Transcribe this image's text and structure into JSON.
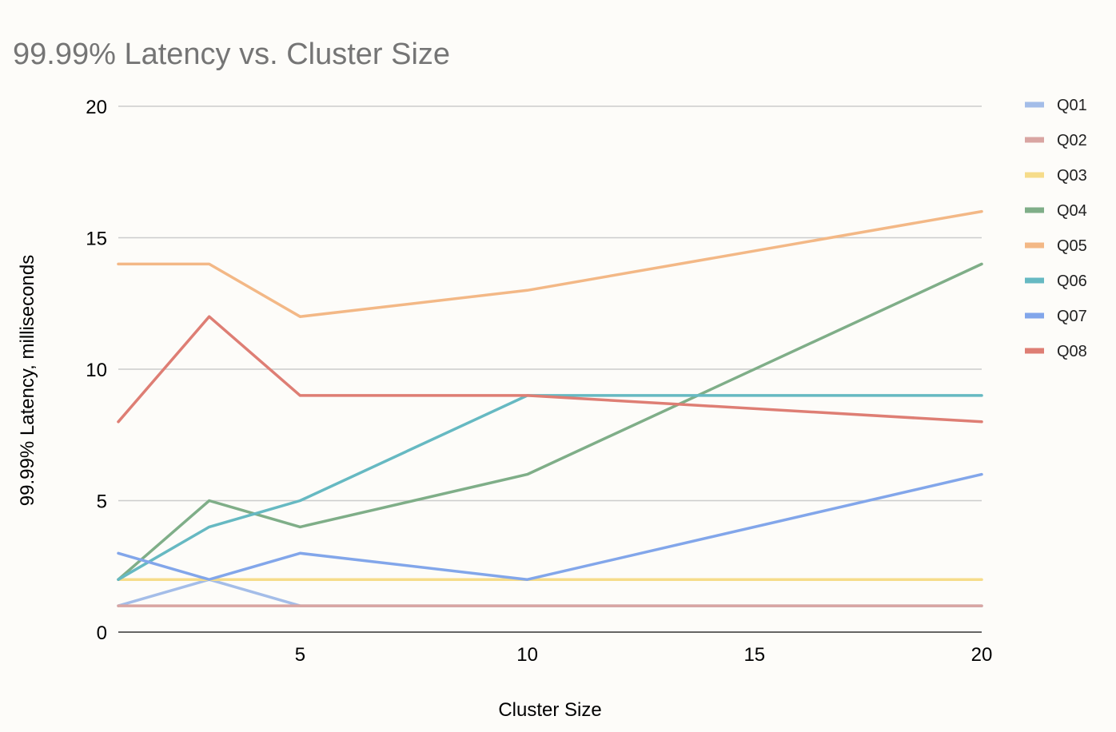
{
  "chart_data": {
    "type": "line",
    "title": "99.99% Latency vs. Cluster Size",
    "xlabel": "Cluster Size",
    "ylabel": "99.99% Latency, milliseconds",
    "xlim": [
      1,
      20
    ],
    "ylim": [
      0,
      20
    ],
    "xticks": [
      5,
      10,
      15,
      20
    ],
    "yticks": [
      0,
      5,
      10,
      15,
      20
    ],
    "grid": true,
    "legend_position": "right",
    "x": [
      1,
      3,
      5,
      10,
      20
    ],
    "series": [
      {
        "name": "Q01",
        "color": "#a4bde8",
        "values": [
          1,
          2,
          1,
          1,
          1
        ]
      },
      {
        "name": "Q02",
        "color": "#d9a5a2",
        "values": [
          1,
          1,
          1,
          1,
          1
        ]
      },
      {
        "name": "Q03",
        "color": "#f6dc8a",
        "values": [
          2,
          2,
          2,
          2,
          2
        ]
      },
      {
        "name": "Q04",
        "color": "#7fae88",
        "values": [
          2,
          5,
          4,
          6,
          14
        ]
      },
      {
        "name": "Q05",
        "color": "#f3b886",
        "values": [
          14,
          14,
          12,
          13,
          16
        ]
      },
      {
        "name": "Q06",
        "color": "#66b9c2",
        "values": [
          2,
          4,
          5,
          9,
          9
        ]
      },
      {
        "name": "Q07",
        "color": "#82a6ea",
        "values": [
          3,
          2,
          3,
          2,
          6
        ]
      },
      {
        "name": "Q08",
        "color": "#de7e74",
        "values": [
          8,
          12,
          9,
          9,
          8
        ]
      }
    ]
  }
}
